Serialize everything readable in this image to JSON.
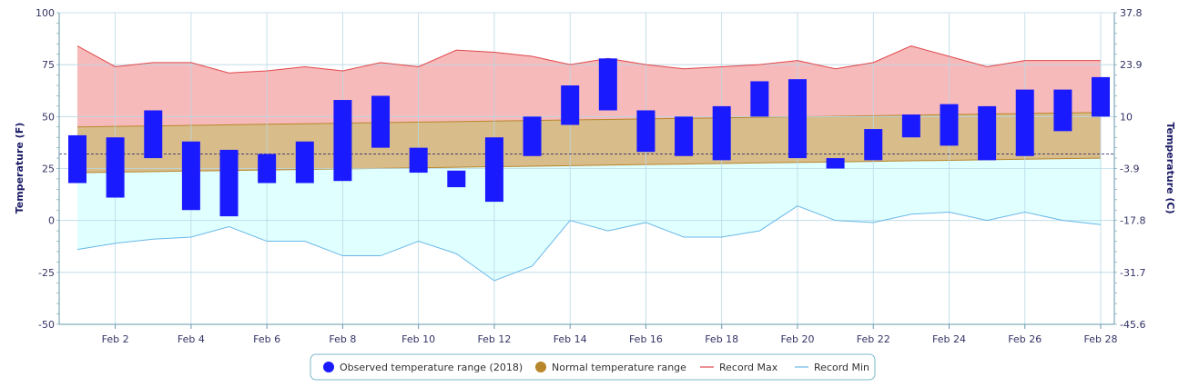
{
  "chart_data": {
    "type": "bar",
    "title": "",
    "xlabel": "",
    "ylabel": "Temperature (F)",
    "ylabel_right": "Temperature (C)",
    "ylim": [
      -50,
      100
    ],
    "yticks": [
      "100",
      "75",
      "50",
      "25",
      "0",
      "-25",
      "-50"
    ],
    "yticks_right": [
      "37.8",
      "23.9",
      "10",
      "-3.9",
      "-17.8",
      "-31.7",
      "-45.6"
    ],
    "grid": true,
    "legend_position": "bottom-center",
    "freezing_line_f": 32,
    "x": [
      1,
      2,
      3,
      4,
      5,
      6,
      7,
      8,
      9,
      10,
      11,
      12,
      13,
      14,
      15,
      16,
      17,
      18,
      19,
      20,
      21,
      22,
      23,
      24,
      25,
      26,
      27,
      28
    ],
    "x_tick_labels": [
      {
        "day": 2,
        "label": "Feb 2"
      },
      {
        "day": 4,
        "label": "Feb 4"
      },
      {
        "day": 6,
        "label": "Feb 6"
      },
      {
        "day": 8,
        "label": "Feb 8"
      },
      {
        "day": 10,
        "label": "Feb 10"
      },
      {
        "day": 12,
        "label": "Feb 12"
      },
      {
        "day": 14,
        "label": "Feb 14"
      },
      {
        "day": 16,
        "label": "Feb 16"
      },
      {
        "day": 18,
        "label": "Feb 18"
      },
      {
        "day": 20,
        "label": "Feb 20"
      },
      {
        "day": 22,
        "label": "Feb 22"
      },
      {
        "day": 24,
        "label": "Feb 24"
      },
      {
        "day": 26,
        "label": "Feb 26"
      },
      {
        "day": 28,
        "label": "Feb 28"
      }
    ],
    "series": [
      {
        "name": "Observed temperature range (2018)",
        "kind": "range-bar",
        "color": "#1a1aff",
        "low": [
          18,
          11,
          30,
          5,
          2,
          18,
          18,
          19,
          35,
          23,
          16,
          9,
          31,
          46,
          53,
          33,
          31,
          29,
          50,
          30,
          25,
          29,
          40,
          36,
          29,
          31,
          43,
          50
        ],
        "high": [
          41,
          40,
          53,
          38,
          34,
          32,
          38,
          58,
          60,
          35,
          24,
          40,
          50,
          65,
          78,
          53,
          50,
          55,
          67,
          68,
          30,
          44,
          51,
          56,
          55,
          63,
          63,
          69
        ]
      },
      {
        "name": "Normal temperature range",
        "kind": "range-area",
        "color": "#b8862b",
        "low_start": 23,
        "low_end": 30,
        "high_start": 45,
        "high_end": 52
      },
      {
        "name": "Record Max",
        "kind": "line",
        "color": "#e0474c",
        "values": [
          84,
          74,
          76,
          76,
          71,
          72,
          74,
          72,
          76,
          74,
          82,
          81,
          79,
          75,
          78,
          75,
          73,
          74,
          75,
          77,
          73,
          76,
          84,
          79,
          74,
          77,
          77,
          77
        ]
      },
      {
        "name": "Record Min",
        "kind": "line",
        "color": "#6ab8e8",
        "values": [
          -14,
          -11,
          -9,
          -8,
          -3,
          -10,
          -10,
          -17,
          -17,
          -10,
          -16,
          -29,
          -22,
          0,
          -5,
          -1,
          -8,
          -8,
          -5,
          7,
          0,
          -1,
          3,
          4,
          0,
          4,
          0,
          -2
        ]
      }
    ]
  },
  "colors": {
    "record_max_fill": "#f7baba",
    "record_min_fill": "#e0ffff",
    "normal_fill": "#d8bc8a",
    "grid": "#b8d8e6",
    "axis": "#6699aa",
    "freezing_line": "#1a1a66"
  }
}
